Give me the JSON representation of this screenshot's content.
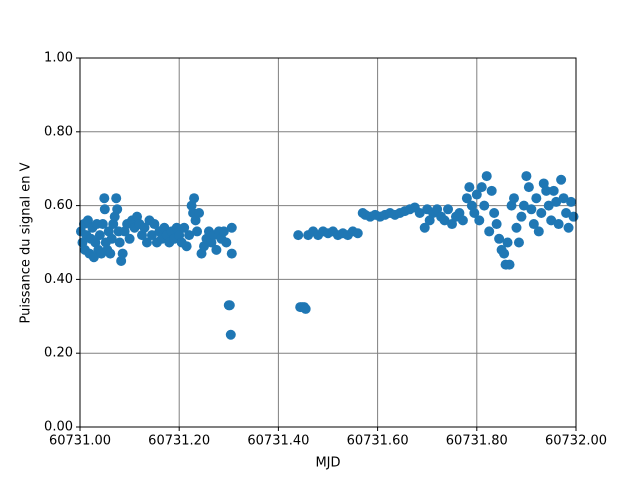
{
  "chart_data": {
    "type": "scatter",
    "xlabel": "MJD",
    "ylabel": "Puissance du signal en V",
    "color": "#1f77b4",
    "grid": true,
    "xlim": [
      60731.0,
      60732.0
    ],
    "xticks": [
      {
        "value": 60731.0,
        "label": "60731.00"
      },
      {
        "value": 60731.2,
        "label": "60731.20"
      },
      {
        "value": 60731.4,
        "label": "60731.40"
      },
      {
        "value": 60731.6,
        "label": "60731.60"
      },
      {
        "value": 60731.8,
        "label": "60731.80"
      },
      {
        "value": 60732.0,
        "label": "60732.00"
      }
    ],
    "ylim": [
      0,
      1
    ],
    "yticks": [
      {
        "value": 0,
        "label": "0.00"
      },
      {
        "value": 0.2,
        "label": "0.20"
      },
      {
        "value": 0.4,
        "label": "0.40"
      },
      {
        "value": 0.6,
        "label": "0.60"
      },
      {
        "value": 0.8,
        "label": "0.80"
      },
      {
        "value": 1,
        "label": "1.00"
      }
    ],
    "x": [
      60731.002,
      60731.005,
      60731.008,
      60731.01,
      60731.013,
      60731.016,
      60731.019,
      60731.022,
      60731.025,
      60731.028,
      60731.031,
      60731.034,
      60731.037,
      60731.04,
      60731.043,
      60731.046,
      60731.049,
      60731.05,
      60731.052,
      60731.055,
      60731.058,
      60731.061,
      60731.064,
      60731.067,
      60731.07,
      60731.073,
      60731.075,
      60731.078,
      60731.08,
      60731.083,
      60731.086,
      60731.09,
      60731.095,
      60731.1,
      60731.105,
      60731.11,
      60731.115,
      60731.12,
      60731.125,
      60731.13,
      60731.135,
      60731.14,
      60731.145,
      60731.15,
      60731.155,
      60731.16,
      60731.165,
      60731.17,
      60731.175,
      60731.18,
      60731.185,
      60731.19,
      60731.195,
      60731.2,
      60731.205,
      60731.21,
      60731.215,
      60731.22,
      60731.225,
      60731.228,
      60731.23,
      60731.233,
      60731.236,
      60731.24,
      60731.245,
      60731.25,
      60731.255,
      60731.26,
      60731.265,
      60731.27,
      60731.275,
      60731.28,
      60731.285,
      60731.29,
      60731.295,
      60731.3,
      60731.302,
      60731.304,
      60731.306,
      60731.306,
      60731.44,
      60731.444,
      60731.448,
      60731.452,
      60731.455,
      60731.46,
      60731.47,
      60731.48,
      60731.49,
      60731.5,
      60731.51,
      60731.52,
      60731.53,
      60731.54,
      60731.55,
      60731.56,
      60731.57,
      60731.575,
      60731.585,
      60731.595,
      60731.605,
      60731.615,
      60731.625,
      60731.635,
      60731.645,
      60731.655,
      60731.665,
      60731.675,
      60731.685,
      60731.695,
      60731.7,
      60731.705,
      60731.712,
      60731.72,
      60731.728,
      60731.735,
      60731.742,
      60731.75,
      60731.758,
      60731.765,
      60731.772,
      60731.78,
      60731.785,
      60731.79,
      60731.795,
      60731.8,
      60731.805,
      60731.81,
      60731.815,
      60731.82,
      60731.825,
      60731.83,
      60731.835,
      60731.84,
      60731.845,
      60731.85,
      60731.855,
      60731.858,
      60731.862,
      60731.866,
      60731.87,
      60731.875,
      60731.88,
      60731.885,
      60731.89,
      60731.895,
      60731.9,
      60731.905,
      60731.91,
      60731.915,
      60731.92,
      60731.925,
      60731.93,
      60731.935,
      60731.94,
      60731.945,
      60731.95,
      60731.955,
      60731.96,
      60731.965,
      60731.97,
      60731.975,
      60731.98,
      60731.985,
      60731.99,
      60731.995
    ],
    "values": [
      0.53,
      0.5,
      0.55,
      0.48,
      0.52,
      0.56,
      0.47,
      0.51,
      0.54,
      0.46,
      0.5,
      0.55,
      0.48,
      0.52,
      0.47,
      0.55,
      0.62,
      0.59,
      0.5,
      0.48,
      0.53,
      0.47,
      0.51,
      0.55,
      0.57,
      0.62,
      0.59,
      0.53,
      0.5,
      0.45,
      0.47,
      0.53,
      0.55,
      0.51,
      0.56,
      0.54,
      0.57,
      0.55,
      0.52,
      0.54,
      0.5,
      0.56,
      0.52,
      0.55,
      0.5,
      0.53,
      0.51,
      0.54,
      0.52,
      0.5,
      0.53,
      0.51,
      0.54,
      0.52,
      0.5,
      0.54,
      0.49,
      0.52,
      0.6,
      0.58,
      0.62,
      0.56,
      0.53,
      0.58,
      0.47,
      0.49,
      0.51,
      0.53,
      0.5,
      0.52,
      0.48,
      0.53,
      0.51,
      0.53,
      0.5,
      0.33,
      0.33,
      0.25,
      0.47,
      0.54,
      0.52,
      0.325,
      0.325,
      0.325,
      0.32,
      0.52,
      0.53,
      0.52,
      0.53,
      0.525,
      0.53,
      0.52,
      0.525,
      0.52,
      0.53,
      0.525,
      0.58,
      0.575,
      0.57,
      0.575,
      0.57,
      0.575,
      0.58,
      0.575,
      0.58,
      0.585,
      0.59,
      0.595,
      0.58,
      0.54,
      0.59,
      0.56,
      0.58,
      0.59,
      0.57,
      0.56,
      0.59,
      0.55,
      0.57,
      0.58,
      0.56,
      0.62,
      0.65,
      0.6,
      0.58,
      0.63,
      0.56,
      0.65,
      0.6,
      0.68,
      0.53,
      0.64,
      0.58,
      0.55,
      0.51,
      0.48,
      0.47,
      0.44,
      0.5,
      0.44,
      0.6,
      0.62,
      0.54,
      0.5,
      0.57,
      0.6,
      0.68,
      0.65,
      0.59,
      0.55,
      0.62,
      0.53,
      0.58,
      0.66,
      0.64,
      0.6,
      0.56,
      0.64,
      0.61,
      0.55,
      0.67,
      0.62,
      0.58,
      0.54,
      0.61,
      0.57
    ]
  }
}
